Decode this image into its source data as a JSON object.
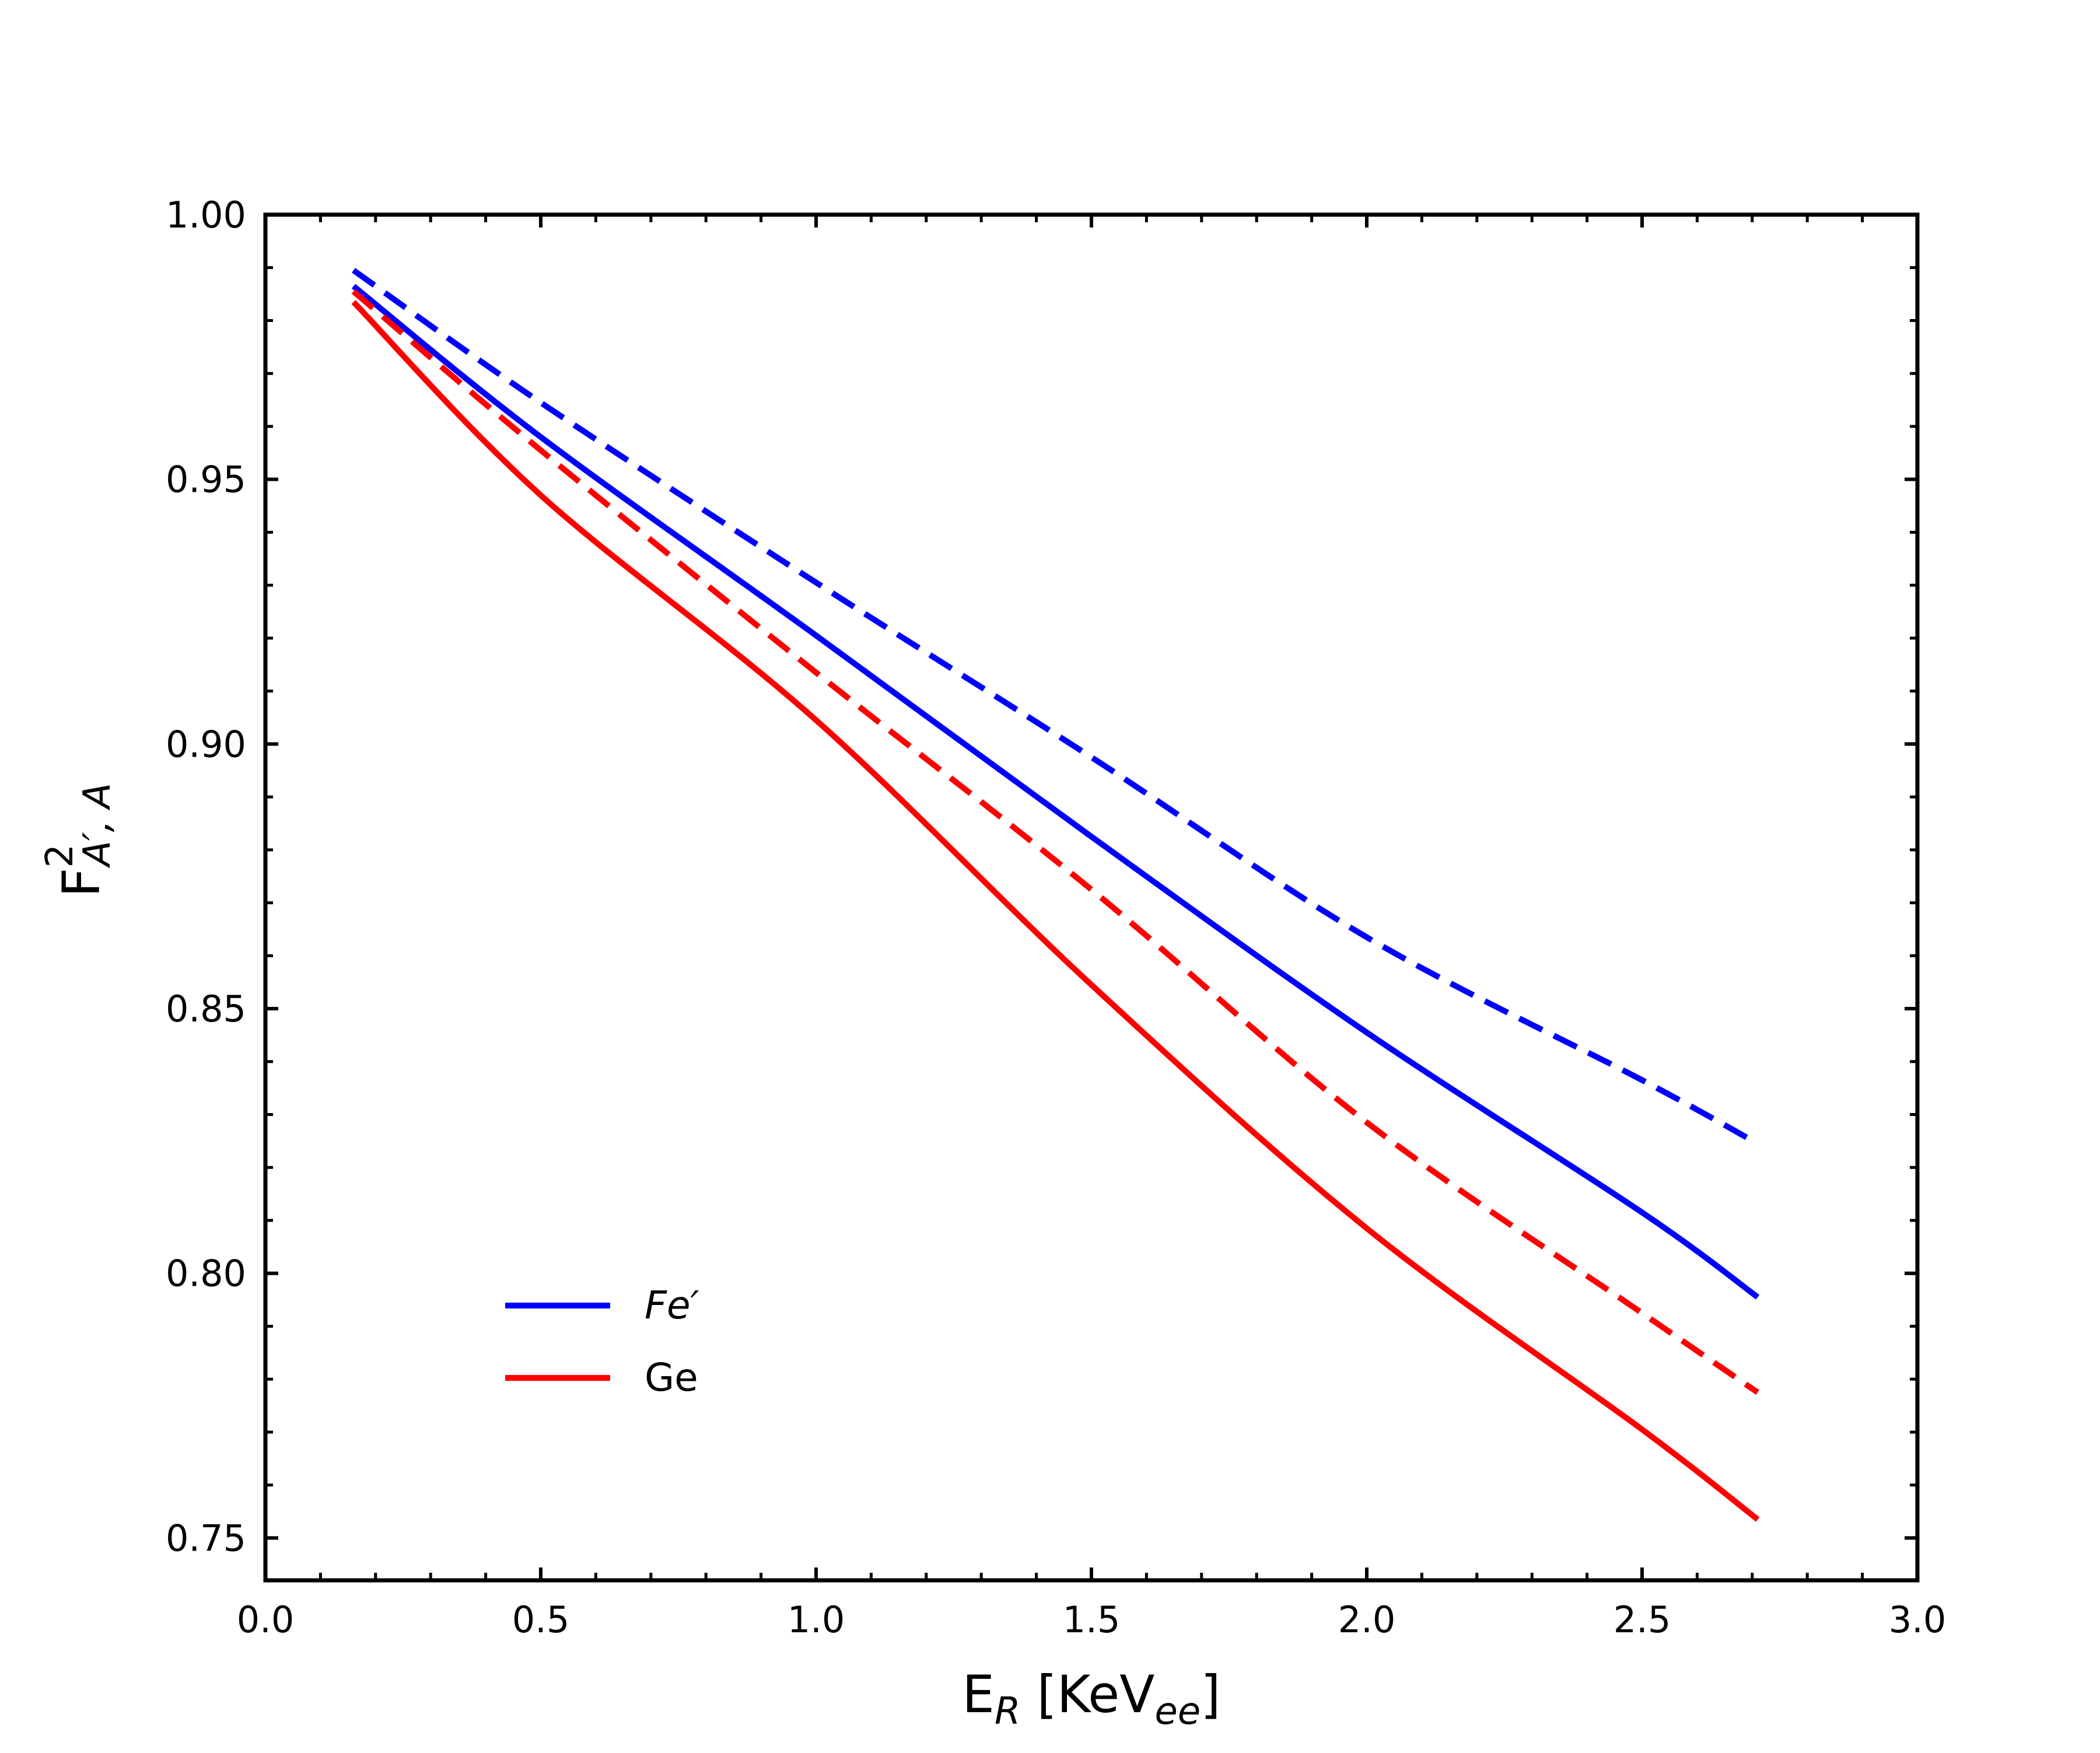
{
  "chart_data": {
    "type": "line",
    "title": "",
    "xlabel": {
      "base": "E",
      "sub": "R",
      "middle": " [KeV",
      "sub2": "ee",
      "end": "]"
    },
    "ylabel": {
      "base": "F",
      "sup": "2",
      "sub": "A′, A"
    },
    "xlim": [
      0.0,
      3.0
    ],
    "ylim": [
      0.742,
      1.0
    ],
    "x_ticks": [
      "0.0",
      "0.5",
      "1.0",
      "1.5",
      "2.0",
      "2.5",
      "3.0"
    ],
    "y_ticks": [
      "0.75",
      "0.80",
      "0.85",
      "0.90",
      "0.95",
      "1.00"
    ],
    "x_tick_values": [
      0.0,
      0.5,
      1.0,
      1.5,
      2.0,
      2.5,
      3.0
    ],
    "y_tick_values": [
      0.75,
      0.8,
      0.85,
      0.9,
      0.95,
      1.0
    ],
    "grid": false,
    "legend_position": "lower-left",
    "legend": [
      {
        "label": "Fe′",
        "italic": true,
        "color": "#0000ff"
      },
      {
        "label": "Ge",
        "italic": false,
        "color": "#ff0000"
      }
    ],
    "series": [
      {
        "name": "Fe solid",
        "color": "#0000ff",
        "dash": false,
        "x": [
          0.16,
          0.5,
          1.0,
          1.5,
          2.0,
          2.5,
          2.71
        ],
        "y": [
          0.9865,
          0.958,
          0.9205,
          0.8825,
          0.8455,
          0.8115,
          0.7955
        ]
      },
      {
        "name": "Fe dashed",
        "color": "#0000ff",
        "dash": true,
        "x": [
          0.16,
          0.5,
          1.0,
          1.5,
          2.0,
          2.5,
          2.71
        ],
        "y": [
          0.9895,
          0.9645,
          0.9305,
          0.8975,
          0.8635,
          0.8365,
          0.8245
        ]
      },
      {
        "name": "Ge solid",
        "color": "#ff0000",
        "dash": false,
        "x": [
          0.16,
          0.5,
          1.0,
          1.5,
          2.0,
          2.5,
          2.71
        ],
        "y": [
          0.9835,
          0.947,
          0.9045,
          0.8545,
          0.8085,
          0.7705,
          0.7535
        ]
      },
      {
        "name": "Ge dashed",
        "color": "#ff0000",
        "dash": true,
        "x": [
          0.16,
          0.5,
          1.0,
          1.5,
          2.0,
          2.5,
          2.71
        ],
        "y": [
          0.9855,
          0.9555,
          0.9135,
          0.8725,
          0.8285,
          0.7925,
          0.7775
        ]
      }
    ]
  }
}
